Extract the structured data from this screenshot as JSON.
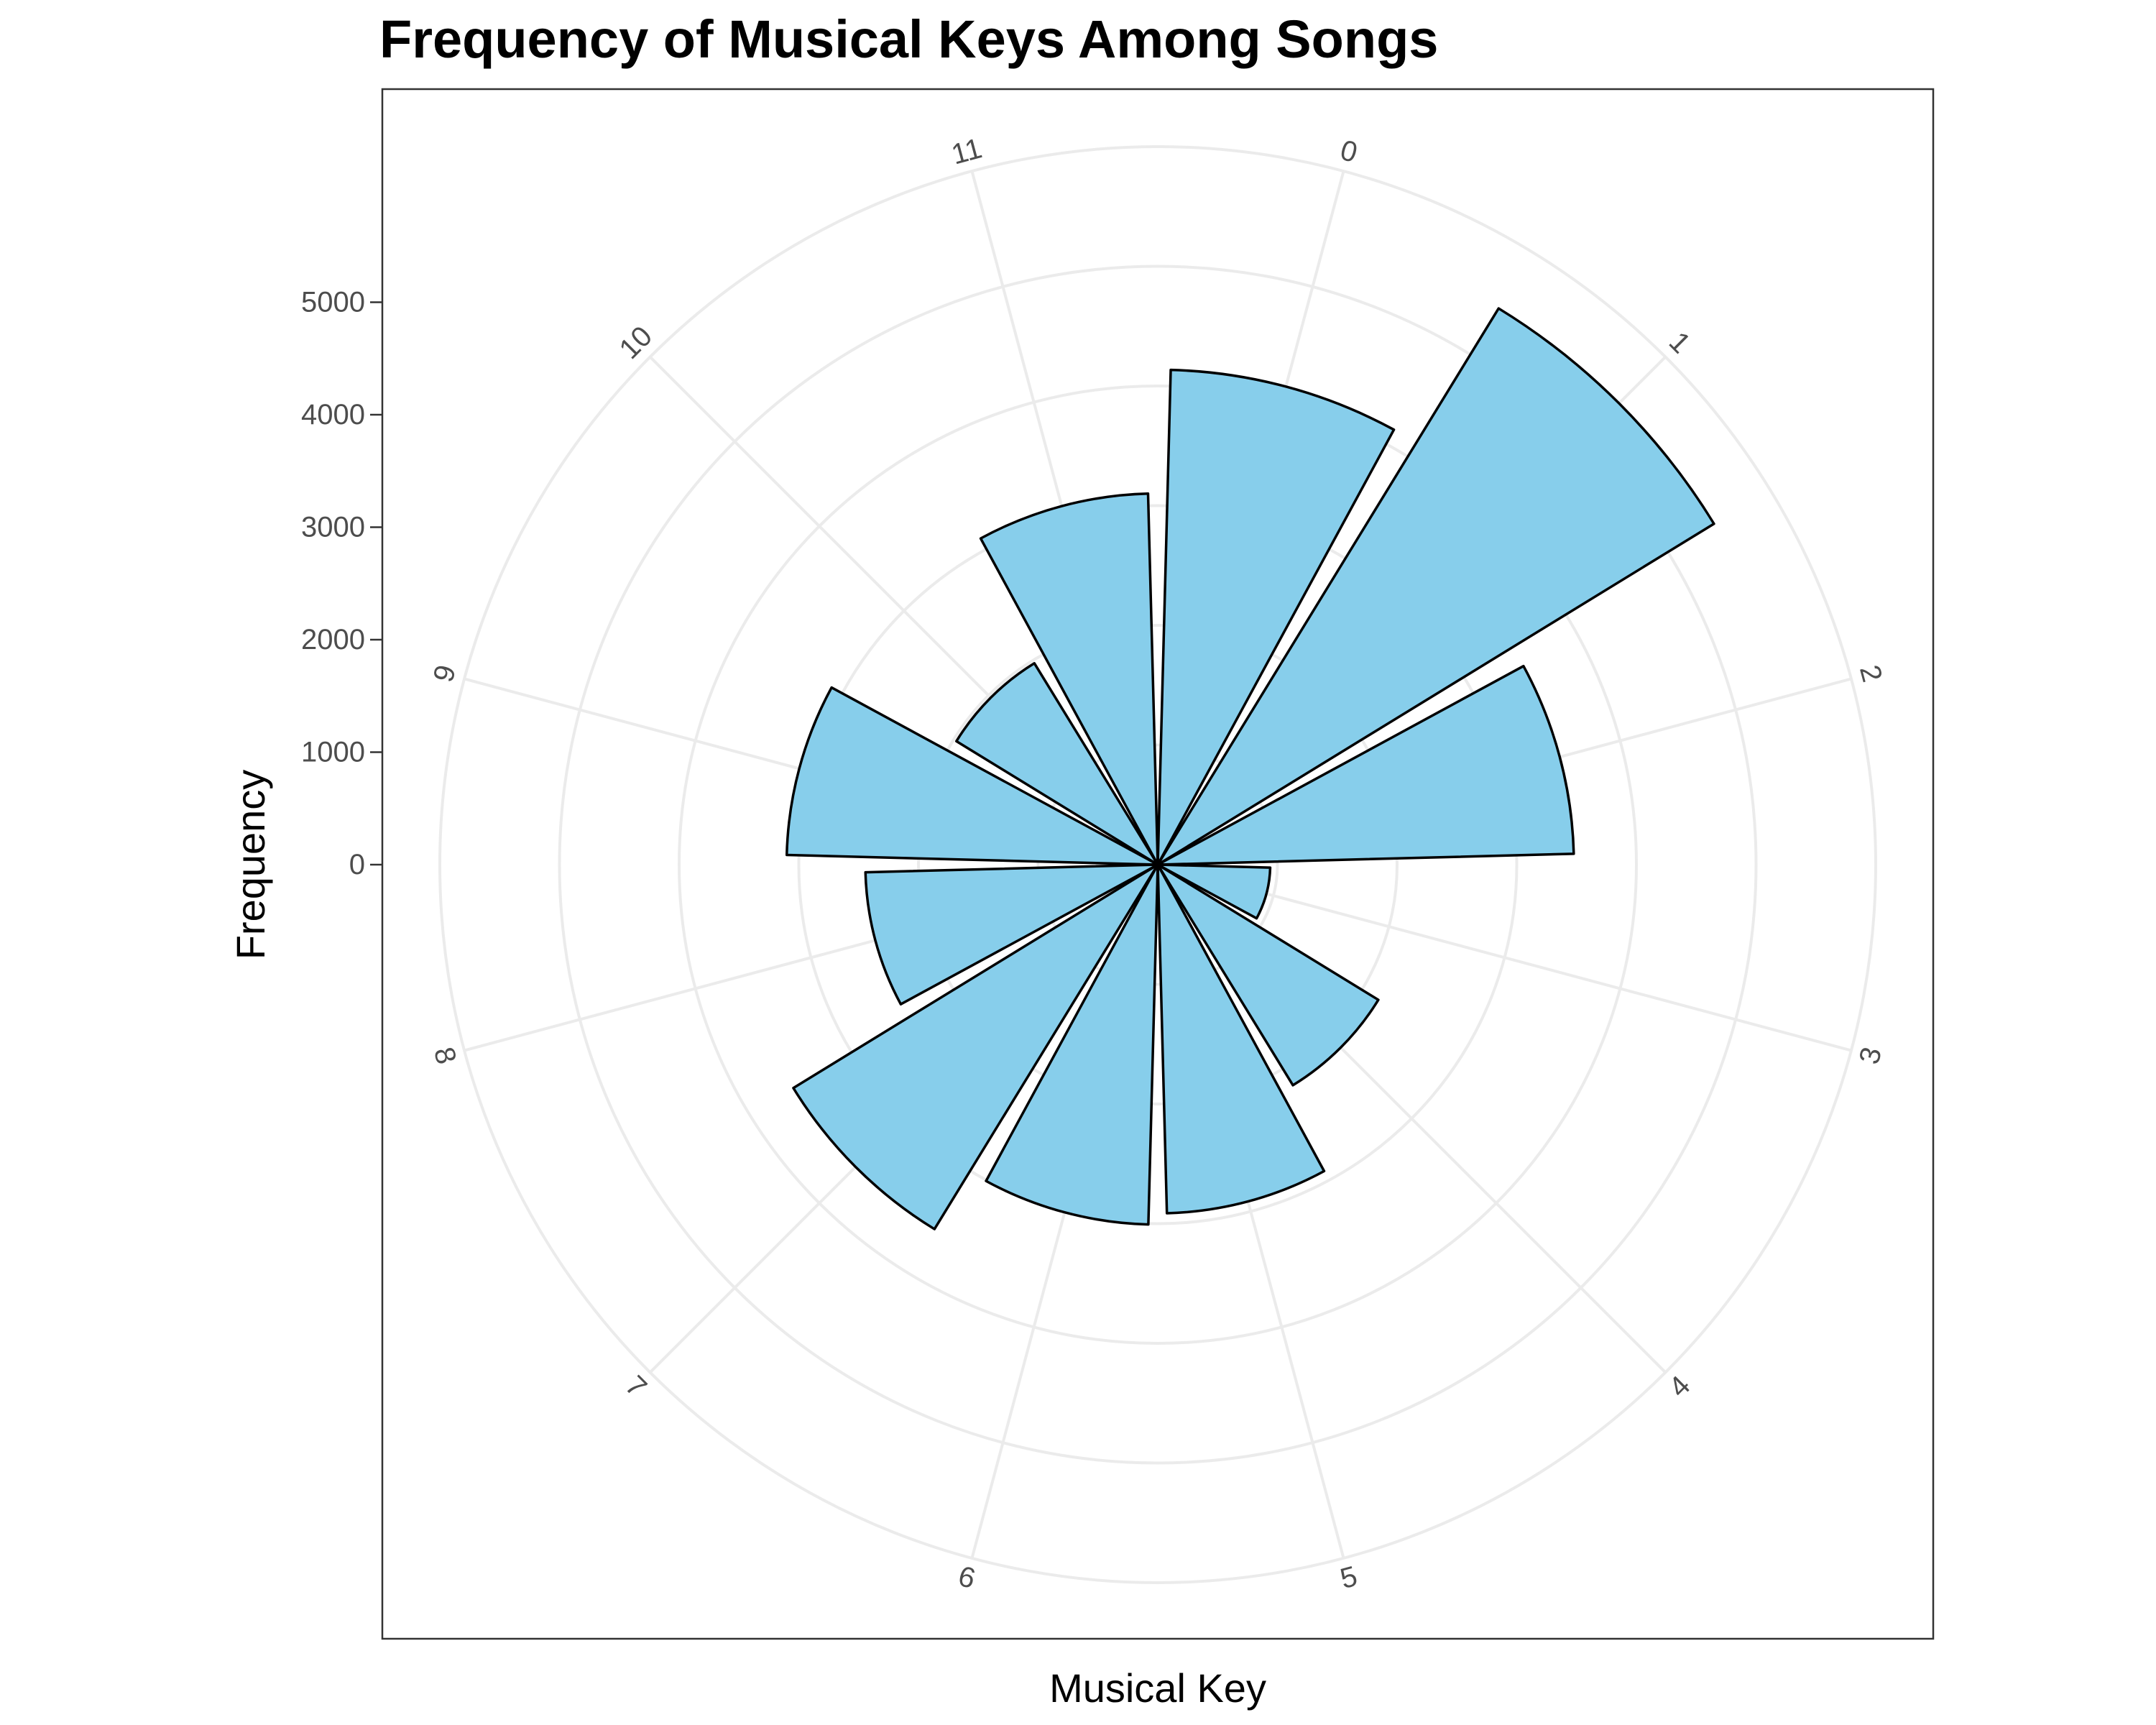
{
  "chart_data": {
    "type": "bar",
    "projection": "polar",
    "title": "Frequency of Musical Keys Among Songs",
    "xlabel": "Musical Key",
    "ylabel": "Frequency",
    "categories": [
      "0",
      "1",
      "2",
      "3",
      "4",
      "5",
      "6",
      "7",
      "8",
      "9",
      "10",
      "11"
    ],
    "values": [
      4400,
      5800,
      3700,
      1000,
      2300,
      3100,
      3200,
      3800,
      2600,
      3300,
      2100,
      3300
    ],
    "yticks": [
      "0",
      "1000",
      "2000",
      "3000",
      "4000",
      "5000"
    ],
    "ylim": [
      0,
      6000
    ],
    "grid": true,
    "colors": {
      "fill": "#87CEEB",
      "outline": "#000000",
      "grid": "#EBEBEB",
      "panel_border": "#333333",
      "tick_text": "#4D4D4D"
    }
  }
}
